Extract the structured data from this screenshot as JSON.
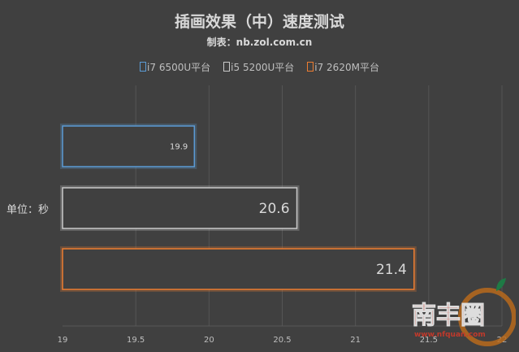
{
  "chart_data": {
    "type": "bar",
    "orientation": "horizontal",
    "title": "插画效果（中）速度测试",
    "subtitle": "制表：nb.zol.com.cn",
    "ylabel": "单位：秒",
    "xlim": [
      19,
      22
    ],
    "xticks": [
      "19",
      "19.5",
      "20",
      "20.5",
      "21",
      "21.5",
      "22"
    ],
    "grid": true,
    "legend_position": "top",
    "series": [
      {
        "name": "i7 6500U平台",
        "value": 19.9,
        "label": "19.9",
        "color": "#5b9bd5"
      },
      {
        "name": "i5 5200U平台",
        "value": 20.6,
        "label": "20.6",
        "color": "#c9c9c9"
      },
      {
        "name": "i7 2620M平台",
        "value": 21.4,
        "label": "21.4",
        "color": "#ed7d31"
      }
    ]
  },
  "watermark": {
    "name": "南丰圈",
    "url": "www.nfquan.com"
  }
}
